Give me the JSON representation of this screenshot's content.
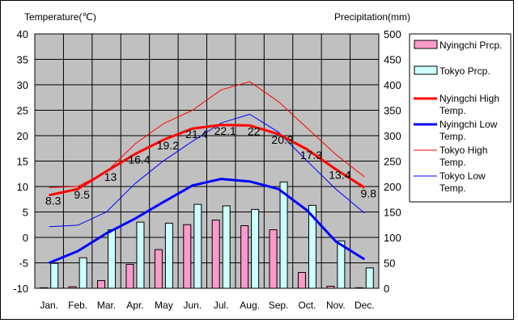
{
  "chart_data": {
    "type": "bar",
    "left_axis_label": "Temperature(℃)",
    "right_axis_label": "Precipitation(mm)",
    "categories": [
      "Jan.",
      "Feb.",
      "Mar.",
      "Apr.",
      "May",
      "Jun.",
      "Jul.",
      "Aug.",
      "Sep.",
      "Oct.",
      "Nov.",
      "Dec."
    ],
    "temperature_ylim": [
      -10,
      40
    ],
    "temperature_ticks": [
      "40",
      "35",
      "30",
      "25",
      "20",
      "15",
      "10",
      "5",
      "0",
      "-5",
      "-10"
    ],
    "precipitation_ylim": [
      0,
      500
    ],
    "precipitation_ticks": [
      "500",
      "450",
      "400",
      "350",
      "300",
      "250",
      "200",
      "150",
      "100",
      "50",
      "0"
    ],
    "grid": true,
    "legend_position": "right",
    "bar_series": [
      {
        "name": "Nyingchi Prcp.",
        "color": "#ff99cc",
        "values": [
          1,
          3,
          15,
          47,
          76,
          125,
          134,
          123,
          115,
          31,
          4,
          1
        ]
      },
      {
        "name": "Tokyo Prcp.",
        "color": "#ccffff",
        "values": [
          49,
          60,
          115,
          130,
          128,
          165,
          162,
          155,
          209,
          163,
          93,
          40
        ]
      }
    ],
    "line_series": [
      {
        "name": "Nyingchi High Temp.",
        "color": "#ff0000",
        "width": 3,
        "values": [
          8.3,
          9.5,
          13,
          16.4,
          19.2,
          21.4,
          22.1,
          22,
          20.3,
          17.3,
          13.4,
          9.8
        ]
      },
      {
        "name": "Nyingchi Low Temp.",
        "color": "#0000ff",
        "width": 3,
        "values": [
          -5,
          -2.7,
          0.8,
          3.7,
          7,
          10.2,
          11.5,
          11,
          9.5,
          5.3,
          -0.8,
          -4.3
        ]
      },
      {
        "name": "Tokyo High Temp.",
        "color": "#ff0000",
        "width": 1,
        "values": [
          9.8,
          10,
          12.9,
          18.4,
          22.4,
          25,
          29,
          30.6,
          26.7,
          21.5,
          16.3,
          11.9
        ]
      },
      {
        "name": "Tokyo Low Temp.",
        "color": "#0000ff",
        "width": 1,
        "values": [
          2.1,
          2.4,
          5,
          10.6,
          15.1,
          18.9,
          22.5,
          24.2,
          20.7,
          15,
          9.5,
          4.8
        ]
      }
    ],
    "data_labels": [
      {
        "text": "8.3",
        "month": 0,
        "value": 8.3
      },
      {
        "text": "9.5",
        "month": 1,
        "value": 9.5
      },
      {
        "text": "13",
        "month": 2,
        "value": 13
      },
      {
        "text": "16.4",
        "month": 3,
        "value": 16.4
      },
      {
        "text": "19.2",
        "month": 4,
        "value": 19.2
      },
      {
        "text": "21.4",
        "month": 5,
        "value": 21.4
      },
      {
        "text": "22.1",
        "month": 6,
        "value": 22.1
      },
      {
        "text": "22",
        "month": 7,
        "value": 22
      },
      {
        "text": "20.3",
        "month": 8,
        "value": 20.3
      },
      {
        "text": "17.3",
        "month": 9,
        "value": 17.3
      },
      {
        "text": "13.4",
        "month": 10,
        "value": 13.4
      },
      {
        "text": "9.8",
        "month": 11,
        "value": 9.8
      }
    ]
  }
}
